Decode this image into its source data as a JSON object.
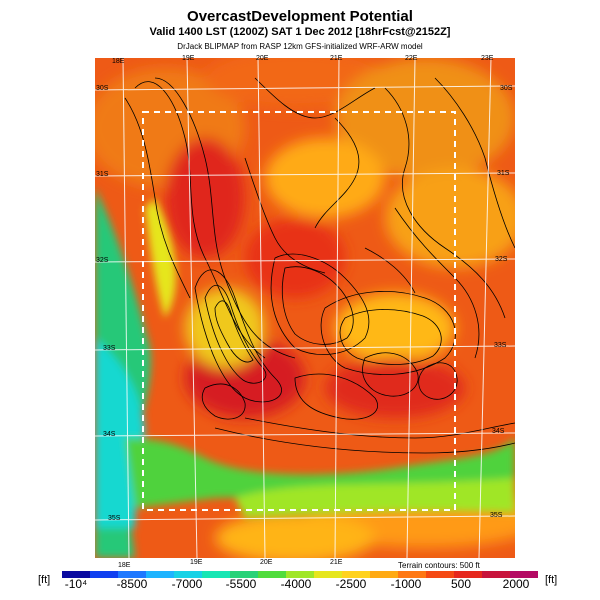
{
  "header": {
    "title": "OvercastDevelopment Potential",
    "valid_line": "Valid 1400 LST (1200Z) SAT 1 Dec 2012 [18hrFcst@2152Z]",
    "source_line": "DrJack BLIPMAP from RASP 12km GFS-initialized WRF-ARW model"
  },
  "map": {
    "lon_top": [
      "18E",
      "19E",
      "20E",
      "21E",
      "22E",
      "23E"
    ],
    "lon_bottom": [
      "18E",
      "19E",
      "20E",
      "21E"
    ],
    "lat_left": [
      "30S",
      "31S",
      "32S",
      "33S",
      "34S",
      "35S"
    ],
    "lat_right": [
      "30S",
      "31S",
      "32S",
      "33S",
      "34S",
      "35S"
    ],
    "terrain_note": "Terrain contours: 500 ft"
  },
  "colorbar": {
    "unit_left": "[ft]",
    "unit_right": "[ft]",
    "labels": [
      "-10⁴",
      "-8500",
      "-7000",
      "-5500",
      "-4000",
      "-2500",
      "-1000",
      "500",
      "2000"
    ],
    "colors": [
      "#0a0aa0",
      "#1040f0",
      "#1e78ff",
      "#1eb4ff",
      "#18d2e6",
      "#18e6b4",
      "#28d278",
      "#50dc3c",
      "#a0e628",
      "#e6e61e",
      "#ffd21e",
      "#ffaa14",
      "#ff7814",
      "#f54a14",
      "#e6281e",
      "#c8143c",
      "#b40a64"
    ]
  }
}
